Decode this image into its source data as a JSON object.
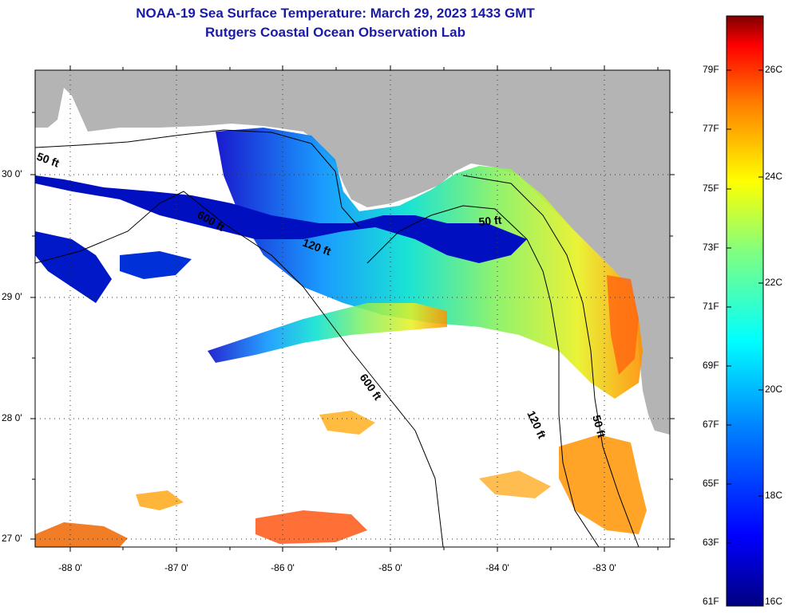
{
  "header": {
    "title_line1": "NOAA-19 Sea Surface Temperature:  March 29, 2023 1433 GMT",
    "title_line2": "Rutgers Coastal Ocean Observation Lab"
  },
  "map": {
    "latitude_labels": [
      "30 0'",
      "29 0'",
      "28 0'",
      "27 0'"
    ],
    "longitude_labels": [
      "-88 0'",
      "-87 0'",
      "-86 0'",
      "-85 0'",
      "-84 0'",
      "-83 0'"
    ],
    "isobath_labels": [
      "50 ft",
      "600 ft",
      "120 ft",
      "50 ft",
      "600 ft",
      "120 ft",
      "50 ft"
    ],
    "colors": {
      "land": "#b4b4b4",
      "cloud": "#ffffff"
    }
  },
  "colorbar": {
    "fahrenheit_labels": [
      "79F",
      "77F",
      "75F",
      "73F",
      "71F",
      "69F",
      "67F",
      "65F",
      "63F",
      "61F"
    ],
    "celsius_labels": [
      "26C",
      "24C",
      "22C",
      "20C",
      "18C",
      "16C"
    ]
  }
}
